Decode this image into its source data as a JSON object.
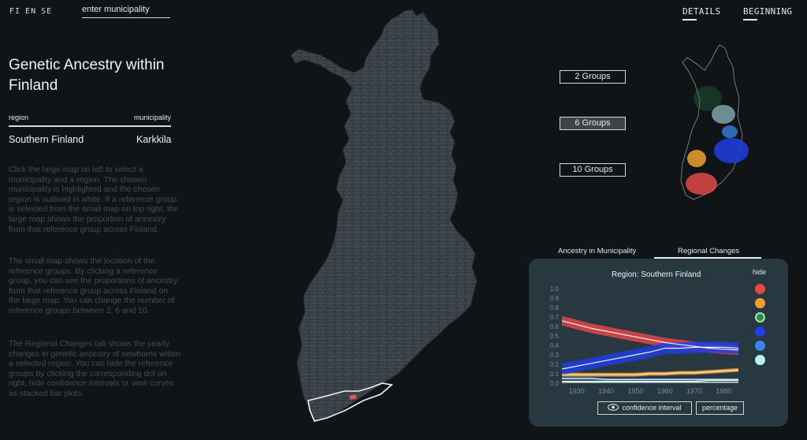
{
  "top": {
    "languages": [
      "FI",
      "EN",
      "SE"
    ],
    "search_placeholder": "enter municipality",
    "details_label": "DETAILS",
    "beginning_label": "BEGINNING"
  },
  "sidebar": {
    "title": "Genetic Ancestry within Finland",
    "region_header": "region",
    "municipality_header": "municipality",
    "region_value": "Southern Finland",
    "municipality_value": "Karkkila",
    "paragraphs": [
      "Click the large map on left to select a municipality and a region. The chosen municipality is highlighted and the chosen region is outlined in white. If a reference group is selected from the small map on top right, the large map shows the proportion of ancestry from that reference group across Finland.",
      "The small map shows the location of the reference groups. By clicking a reference group, you can see the proportions of ancestry from that reference group across Finland on the large map. You can change the number of reference groups between 2, 6 and 10.",
      "The Regional Changes tab shows the yearly changes in genetic ancestry of newborns within a selected region. You can hide the reference groups by clicking the corresponding dot on right, hide confidence intervals or view curves as stacked bar plots."
    ]
  },
  "groups": {
    "buttons": [
      "2 Groups",
      "6 Groups",
      "10 Groups"
    ],
    "selected": "6 Groups"
  },
  "tabs": {
    "items": [
      "Ancestry in Municipality",
      "Regional Changes"
    ],
    "active": "Regional Changes"
  },
  "panel": {
    "title": "Region: Southern Finland",
    "hide_label": "hide",
    "confidence_label": "confidence interval",
    "percentage_label": "percentage"
  },
  "colors": {
    "background": "#101417",
    "panel": "#283841",
    "map_fill": "#3f474e",
    "highlight": "#e05555",
    "groups": [
      "#e04848",
      "#f0a030",
      "#2c8a4c",
      "#1f3ee0",
      "#3b86e8",
      "#b8f0f5"
    ]
  },
  "chart_data": {
    "type": "area",
    "title": "Region: Southern Finland",
    "x_ticks": [
      "1930",
      "1940",
      "1950",
      "1960",
      "1970",
      "1980"
    ],
    "y_ticks": [
      "0.0",
      "0.1",
      "0.2",
      "0.3",
      "0.4",
      "0.5",
      "0.6",
      "0.7",
      "0.8",
      "0.9",
      "1.0"
    ],
    "xlim": [
      1925,
      1985
    ],
    "ylim": [
      0,
      1
    ],
    "x": [
      1925,
      1930,
      1935,
      1940,
      1945,
      1950,
      1955,
      1960,
      1965,
      1970,
      1975,
      1980,
      1985
    ],
    "series": [
      {
        "color": "#e04848",
        "values": [
          0.66,
          0.62,
          0.58,
          0.55,
          0.52,
          0.49,
          0.46,
          0.43,
          0.41,
          0.39,
          0.37,
          0.36,
          0.35
        ],
        "ci": 0.05
      },
      {
        "color": "#f0a030",
        "values": [
          0.09,
          0.09,
          0.09,
          0.09,
          0.09,
          0.09,
          0.1,
          0.1,
          0.11,
          0.11,
          0.12,
          0.13,
          0.14
        ],
        "ci": 0.02
      },
      {
        "color": "#2c8a4c",
        "values": [
          0.02,
          0.02,
          0.02,
          0.02,
          0.02,
          0.02,
          0.02,
          0.02,
          0.02,
          0.02,
          0.03,
          0.03,
          0.03
        ],
        "ci": 0.01
      },
      {
        "color": "#1f3ee0",
        "values": [
          0.15,
          0.18,
          0.21,
          0.24,
          0.27,
          0.3,
          0.33,
          0.37,
          0.37,
          0.38,
          0.38,
          0.38,
          0.37
        ],
        "ci": 0.06
      },
      {
        "color": "#3b86e8",
        "values": [
          0.05,
          0.05,
          0.05,
          0.04,
          0.04,
          0.04,
          0.04,
          0.04,
          0.04,
          0.04,
          0.04,
          0.04,
          0.04
        ],
        "ci": 0.01
      },
      {
        "color": "#b8f0f5",
        "values": [
          0.01,
          0.01,
          0.01,
          0.01,
          0.01,
          0.01,
          0.01,
          0.01,
          0.01,
          0.01,
          0.01,
          0.01,
          0.01
        ],
        "ci": 0.005
      }
    ]
  }
}
